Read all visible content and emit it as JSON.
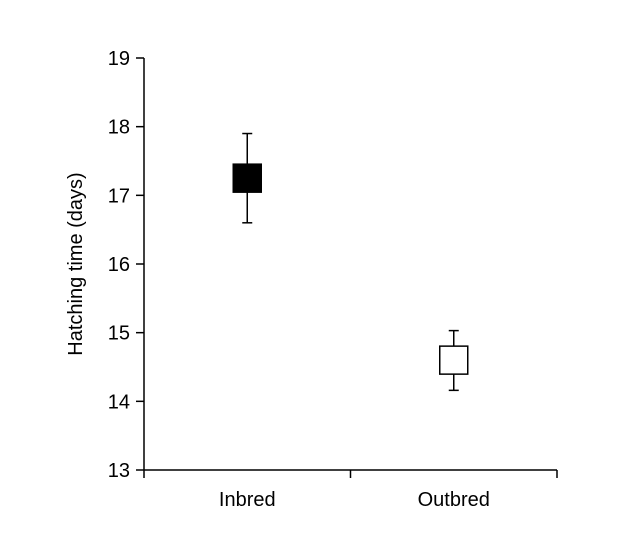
{
  "chart_data": {
    "type": "scatter",
    "categories": [
      "Inbred",
      "Outbred"
    ],
    "values": [
      17.25,
      14.6
    ],
    "error_upper": [
      17.9,
      15.03
    ],
    "error_lower": [
      16.6,
      14.16
    ],
    "marker_fill": [
      "#000000",
      "#ffffff"
    ],
    "marker_shape": "square",
    "title": "",
    "xlabel": "",
    "ylabel": "Hatching time (days)",
    "ylim": [
      13,
      19
    ],
    "yticks": [
      13,
      14,
      15,
      16,
      17,
      18,
      19
    ],
    "grid": false,
    "legend": "none"
  }
}
